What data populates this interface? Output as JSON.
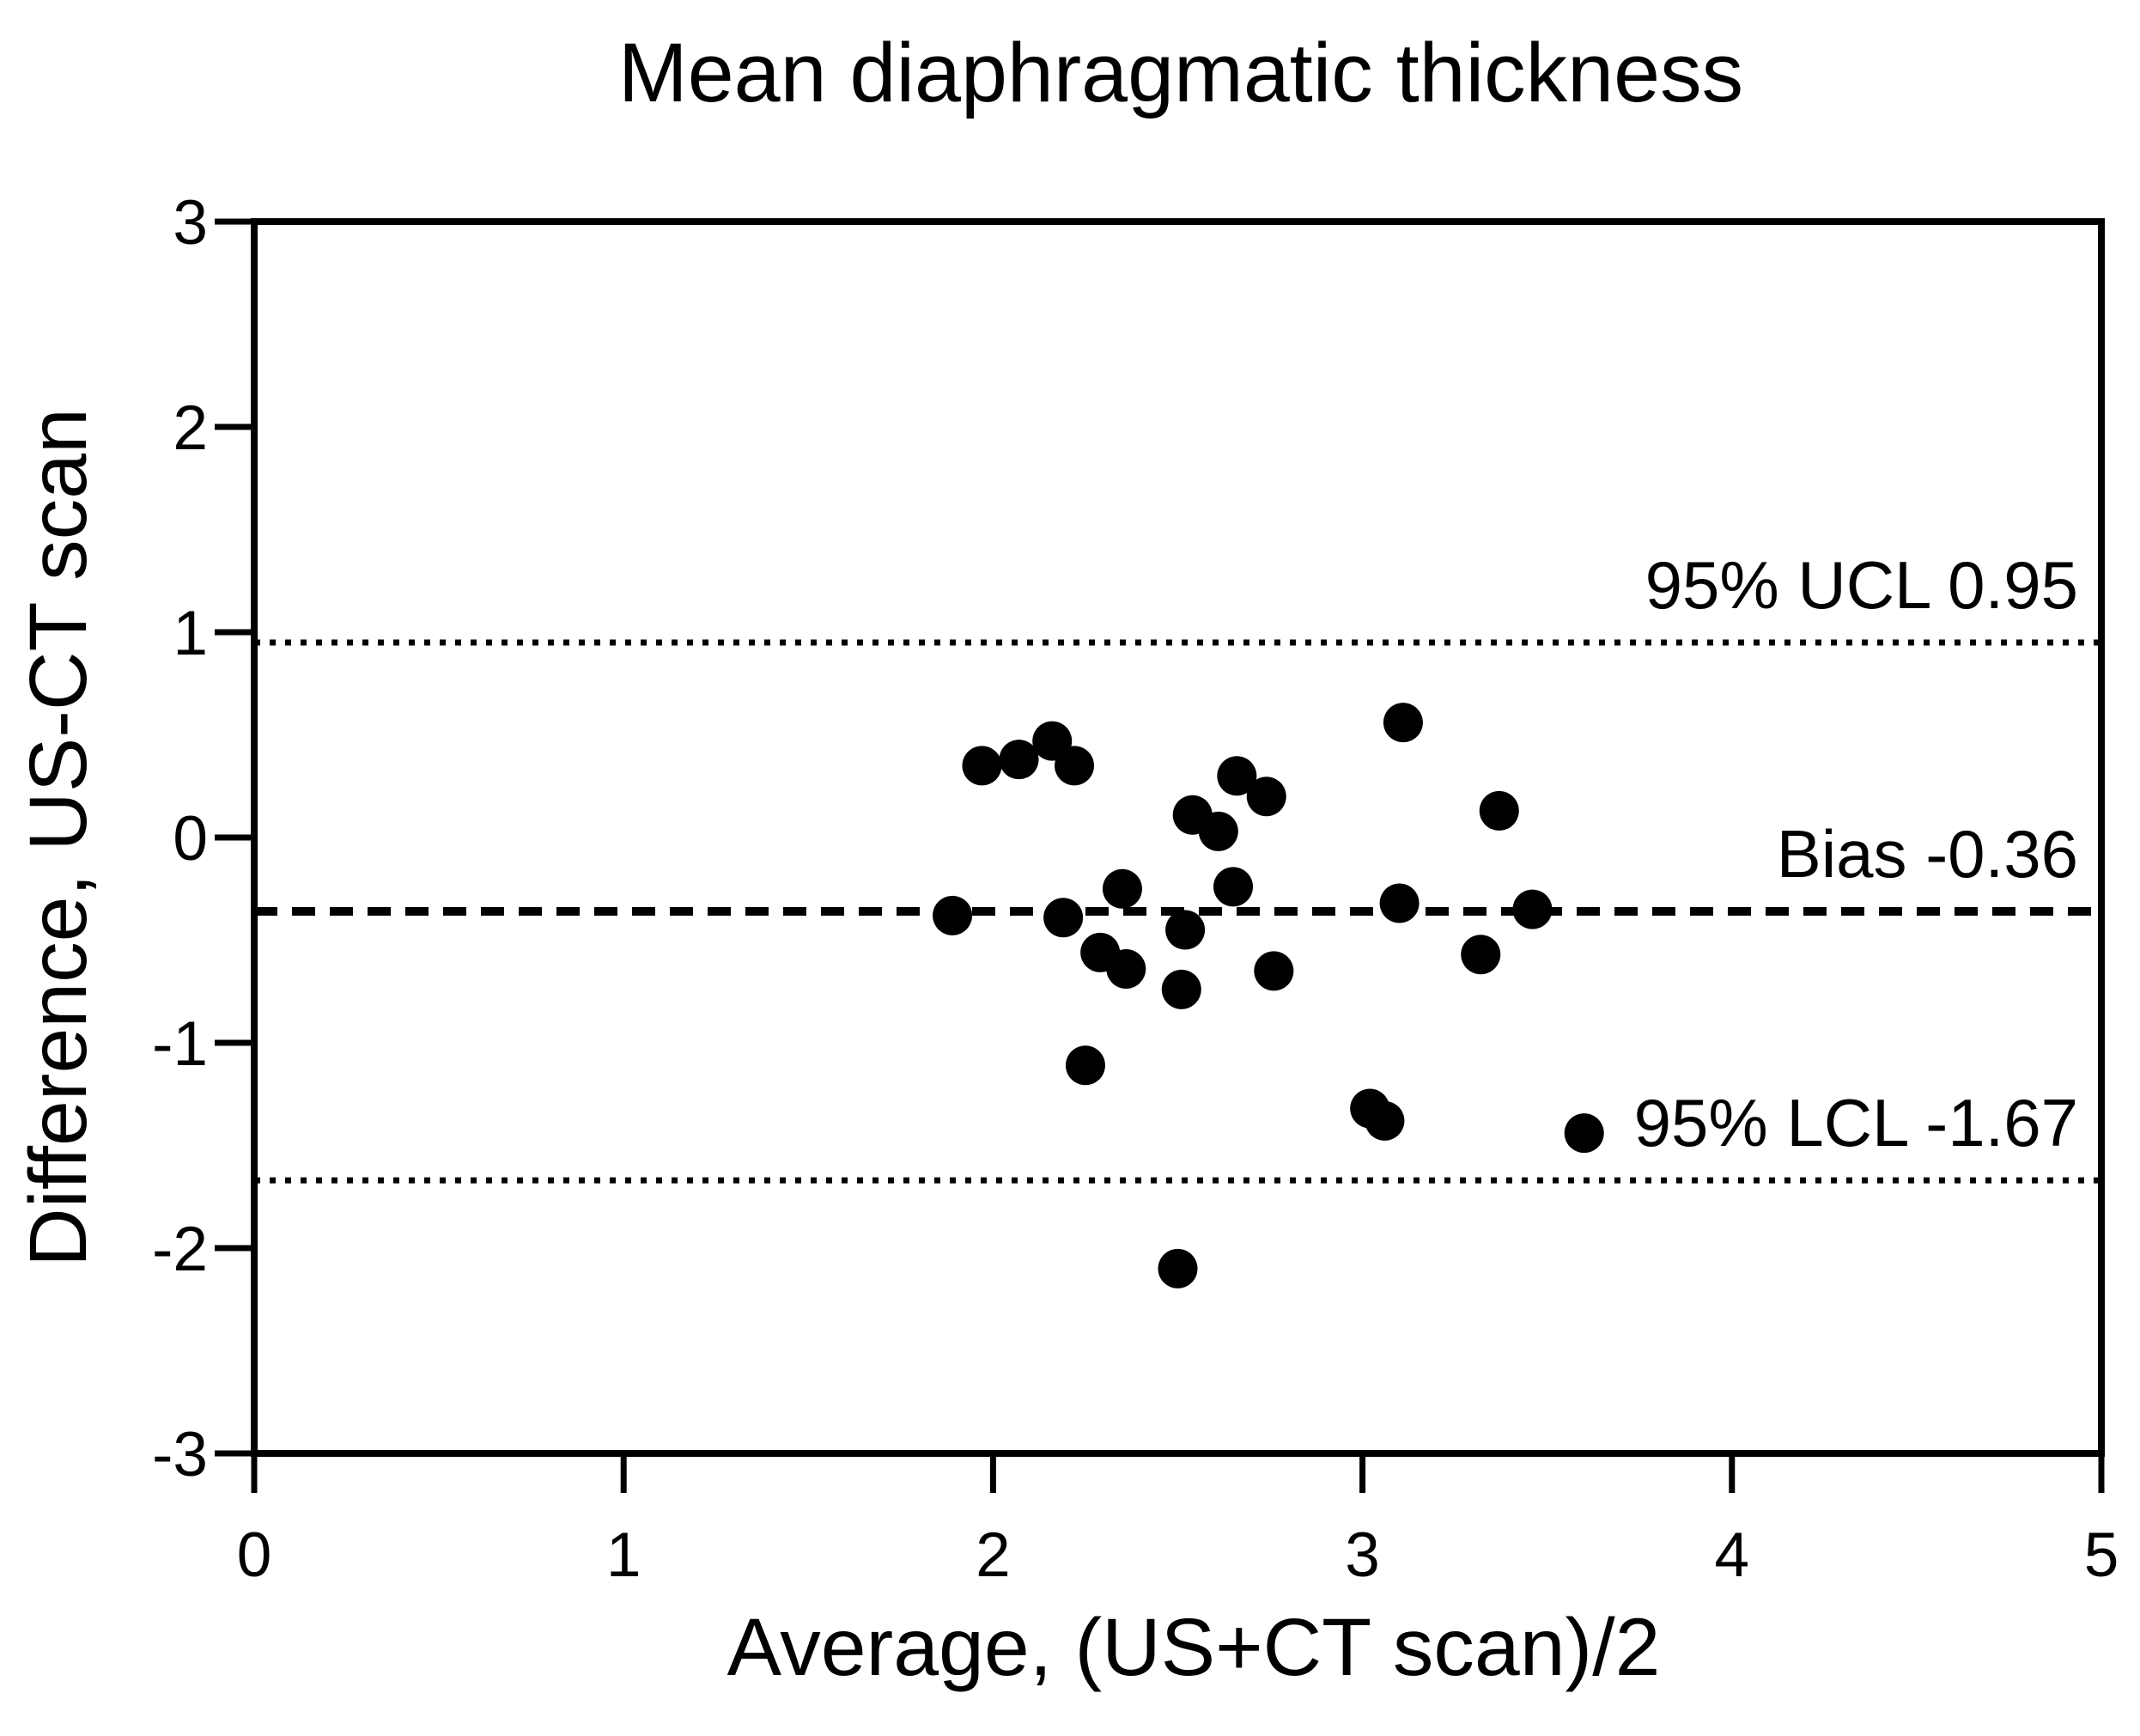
{
  "page": {
    "background": "#ffffff",
    "foreground": "#000000"
  },
  "chart_data": {
    "type": "scatter",
    "title": "Mean diaphragmatic thickness",
    "xlabel": "Average, (US+CT scan)/2",
    "ylabel": "Difference, US-CT scan",
    "xlim": [
      0,
      5
    ],
    "ylim": [
      -3,
      3
    ],
    "x_ticks": [
      0,
      1,
      2,
      3,
      4,
      5
    ],
    "y_ticks": [
      3,
      2,
      1,
      0,
      -1,
      -2,
      -3
    ],
    "grid": false,
    "legend": "none",
    "marker": {
      "shape": "circle",
      "color": "#000000",
      "radius_px": 23
    },
    "reference_lines": [
      {
        "name": "ucl",
        "label": "95% UCL 0.95",
        "value": 0.95,
        "style": "dotted"
      },
      {
        "name": "bias",
        "label": "Bias -0.36",
        "value": -0.36,
        "style": "dashed"
      },
      {
        "name": "lcl",
        "label": "95% LCL -1.67",
        "value": -1.67,
        "style": "dotted"
      }
    ],
    "points": [
      [
        1.97,
        0.35
      ],
      [
        2.07,
        0.38
      ],
      [
        2.16,
        0.47
      ],
      [
        2.22,
        0.35
      ],
      [
        2.54,
        0.11
      ],
      [
        2.61,
        0.03
      ],
      [
        2.66,
        0.3
      ],
      [
        2.74,
        0.2
      ],
      [
        2.35,
        -0.25
      ],
      [
        2.65,
        -0.24
      ],
      [
        1.89,
        -0.38
      ],
      [
        2.19,
        -0.39
      ],
      [
        2.52,
        -0.45
      ],
      [
        2.29,
        -0.56
      ],
      [
        2.36,
        -0.64
      ],
      [
        2.51,
        -0.74
      ],
      [
        2.76,
        -0.65
      ],
      [
        2.25,
        -1.11
      ],
      [
        3.02,
        -1.32
      ],
      [
        3.06,
        -1.38
      ],
      [
        2.5,
        -2.1
      ],
      [
        3.11,
        0.56
      ],
      [
        3.37,
        0.13
      ],
      [
        3.1,
        -0.32
      ],
      [
        3.46,
        -0.35
      ],
      [
        3.32,
        -0.57
      ],
      [
        3.6,
        -1.44
      ]
    ]
  }
}
